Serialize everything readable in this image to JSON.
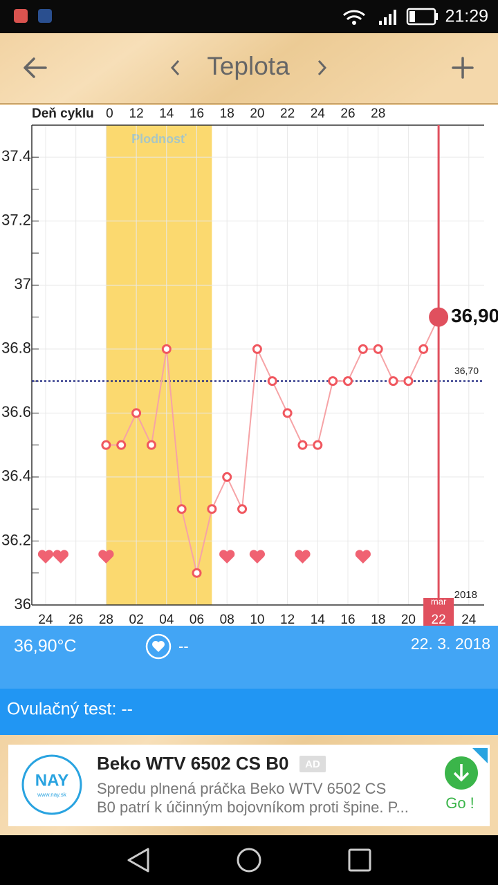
{
  "status_bar": {
    "time": "21:29"
  },
  "header": {
    "title": "Teplota"
  },
  "chart_data": {
    "type": "line",
    "x_axis_label": "Deň cyklu",
    "categories": [
      "24",
      null,
      "26",
      null,
      "28",
      null,
      "02",
      null,
      "04",
      null,
      "06",
      null,
      "08",
      null,
      "10",
      null,
      "12",
      null,
      "14",
      null,
      "16",
      null,
      "18",
      null,
      "20",
      null,
      "22",
      null,
      "24"
    ],
    "cycle_days": [
      null,
      null,
      null,
      null,
      "0",
      null,
      "12",
      null,
      "14",
      null,
      "16",
      null,
      "18",
      null,
      "20",
      null,
      "22",
      null,
      "24",
      null,
      "26",
      null,
      "28",
      null,
      null,
      null,
      null,
      null,
      null
    ],
    "values": [
      null,
      null,
      null,
      null,
      36.5,
      36.5,
      36.6,
      36.5,
      36.8,
      36.3,
      36.1,
      36.3,
      36.4,
      36.3,
      36.8,
      36.7,
      36.6,
      36.5,
      36.5,
      36.7,
      36.7,
      36.8,
      36.8,
      36.7,
      36.7,
      36.8,
      36.9,
      null,
      null
    ],
    "color": "#f0575f",
    "heart_days": [
      true,
      true,
      false,
      false,
      true,
      false,
      false,
      false,
      false,
      false,
      false,
      false,
      true,
      false,
      true,
      false,
      false,
      true,
      false,
      false,
      false,
      true,
      false,
      false,
      false,
      false,
      false,
      false,
      false
    ],
    "ylim": [
      36,
      37.5
    ],
    "yticks": [
      36,
      36.2,
      36.4,
      36.6,
      36.8,
      37,
      37.2,
      37.4
    ],
    "minor_yticks": [
      36.1,
      36.3,
      36.5,
      36.7,
      36.9,
      37.1,
      37.3,
      37.5
    ],
    "grid": true,
    "fertile": {
      "label": "Plodnosť",
      "start": 4,
      "end": 11
    },
    "coverline": {
      "value": 36.7,
      "label": "36,70"
    },
    "selected": {
      "index": 26,
      "label": "36,90",
      "month": "mar",
      "year": "2018"
    }
  },
  "info": {
    "temperature": "36,90°C",
    "intercourse": "--",
    "date": "22. 3. 2018",
    "ovulation_test": "Ovulačný test: --"
  },
  "ad": {
    "logo": "NAY",
    "logo_url": "www.nay.sk",
    "title": "Beko WTV 6502 CS B0",
    "badge": "AD",
    "line1": "Spredu plnená práčka Beko WTV 6502 CS",
    "line2": "B0 patrí k účinným bojovníkom proti špine. P...",
    "cta": "Go !"
  }
}
